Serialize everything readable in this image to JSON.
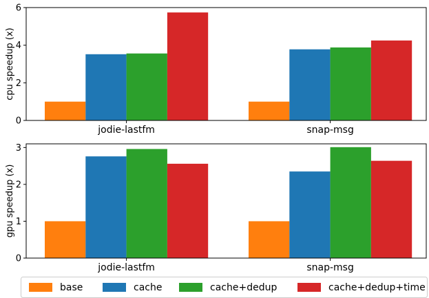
{
  "chart_data": [
    {
      "type": "bar",
      "ylabel": "cpu speedup (x)",
      "categories": [
        "jodie-lastfm",
        "snap-msg"
      ],
      "ylim": [
        0,
        6
      ],
      "yticks": [
        0,
        2,
        4,
        6
      ],
      "series": [
        {
          "name": "base",
          "color": "#ff7f0e",
          "values": [
            1.0,
            1.0
          ]
        },
        {
          "name": "cache",
          "color": "#1f77b4",
          "values": [
            3.52,
            3.78
          ]
        },
        {
          "name": "cache+dedup",
          "color": "#2ca02c",
          "values": [
            3.56,
            3.88
          ]
        },
        {
          "name": "cache+dedup+time",
          "color": "#d62728",
          "values": [
            5.74,
            4.25
          ]
        }
      ]
    },
    {
      "type": "bar",
      "ylabel": "gpu speedup (x)",
      "categories": [
        "jodie-lastfm",
        "snap-msg"
      ],
      "ylim": [
        0,
        3.1
      ],
      "yticks": [
        0,
        1,
        2,
        3
      ],
      "series": [
        {
          "name": "base",
          "color": "#ff7f0e",
          "values": [
            1.0,
            1.0
          ]
        },
        {
          "name": "cache",
          "color": "#1f77b4",
          "values": [
            2.76,
            2.35
          ]
        },
        {
          "name": "cache+dedup",
          "color": "#2ca02c",
          "values": [
            2.96,
            3.01
          ]
        },
        {
          "name": "cache+dedup+time",
          "color": "#d62728",
          "values": [
            2.56,
            2.64
          ]
        }
      ]
    }
  ],
  "legend": {
    "placement": "bottom",
    "items": [
      {
        "label": "base",
        "color": "#ff7f0e"
      },
      {
        "label": "cache",
        "color": "#1f77b4"
      },
      {
        "label": "cache+dedup",
        "color": "#2ca02c"
      },
      {
        "label": "cache+dedup+time",
        "color": "#d62728"
      }
    ]
  }
}
